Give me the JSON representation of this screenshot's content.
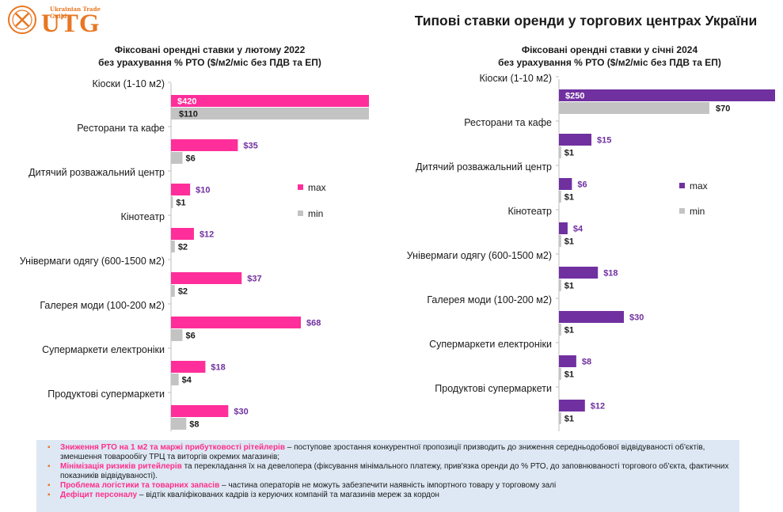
{
  "logo": {
    "text": "UTG",
    "tagline": "Ukrainian Trade Guild",
    "color": "#e87722"
  },
  "title": "Типові ставки оренди у торгових центрах України",
  "colors": {
    "left_max": "#ff2e9a",
    "right_max": "#7030a0",
    "min": "#c3c3c3",
    "left_max_label": "#7030a0",
    "right_max_label": "#7030a0",
    "highlight": "#ff2e8a",
    "bullet": "#e87722"
  },
  "chart_data": [
    {
      "type": "bar",
      "orientation": "horizontal",
      "title_lines": [
        "Фіксовані орендні ставки у лютому 2022",
        "без урахування % РТО ($/м2/міс без ПДВ та ЕП)"
      ],
      "categories": [
        "Кіоски (1-10 м2)",
        "Ресторани та кафе",
        "Дитячий розважальний центр",
        "Кінотеатр",
        "Універмаги одягу (600-1500 м2)",
        "Галерея моди (100-200 м2)",
        "Супермаркети електроніки",
        "Продуктові супермаркети"
      ],
      "series": [
        {
          "name": "max",
          "values": [
            420,
            35,
            10,
            12,
            37,
            68,
            18,
            30
          ],
          "labels": [
            "$420",
            "$35",
            "$10",
            "$12",
            "$37",
            "$68",
            "$18",
            "$30"
          ]
        },
        {
          "name": "min",
          "values": [
            110,
            6,
            1,
            2,
            2,
            6,
            4,
            8
          ],
          "labels": [
            "$110",
            "$6",
            "$1",
            "$2",
            "$2",
            "$6",
            "$4",
            "$8"
          ]
        }
      ],
      "legend": [
        "max",
        "min"
      ],
      "legend_position": "right",
      "xlim": [
        0,
        420
      ],
      "axis_break": true,
      "grid": false
    },
    {
      "type": "bar",
      "orientation": "horizontal",
      "title_lines": [
        "Фіксовані орендні ставки у січні 2024",
        "без урахування % РТО ($/м2/міс без ПДВ та ЕП)"
      ],
      "categories": [
        "Кіоски (1-10 м2)",
        "Ресторани та кафе",
        "Дитячий розважальний центр",
        "Кінотеатр",
        "Універмаги одягу (600-1500 м2)",
        "Галерея моди (100-200 м2)",
        "Супермаркети електроніки",
        "Продуктові супермаркети"
      ],
      "series": [
        {
          "name": "max",
          "values": [
            250,
            15,
            6,
            4,
            18,
            30,
            8,
            12
          ],
          "labels": [
            "$250",
            "$15",
            "$6",
            "$4",
            "$18",
            "$30",
            "$8",
            "$12"
          ]
        },
        {
          "name": "min",
          "values": [
            70,
            1,
            1,
            1,
            1,
            1,
            1,
            1
          ],
          "labels": [
            "$70",
            "$1",
            "$1",
            "$1",
            "$1",
            "$1",
            "$1",
            "$1"
          ]
        }
      ],
      "legend": [
        "max",
        "min"
      ],
      "legend_position": "right",
      "xlim": [
        0,
        250
      ],
      "axis_break": true,
      "grid": false
    }
  ],
  "notes": [
    {
      "highlight": "Зниження РТО на 1 м2 та маржі прибутковості рітейлерів",
      "text": " – поступове зростання конкурентної пропозиції призводить до зниження середньодобової відвідуваності об'єктів, зменшення товарообігу ТРЦ  та виторгів окремих магазинів;"
    },
    {
      "highlight": "Мінімізація ризиків ритейлерів",
      "text": " та перекладання їх на девелопера (фіксування мінімального платежу, прив'язка оренди до % РТО, до заповнюваності торгового об'єкта, фактичних показників відвідуваності)."
    },
    {
      "highlight": "Проблема логістики та товарних запасів",
      "text": " – частина операторів не можуть забезпечити наявність імпортного товару у торговому залі"
    },
    {
      "highlight": "Дефіцит персоналу",
      "text": " – відтік кваліфікованих кадрів із керуючих компаній та магазинів мереж за кордон"
    }
  ]
}
